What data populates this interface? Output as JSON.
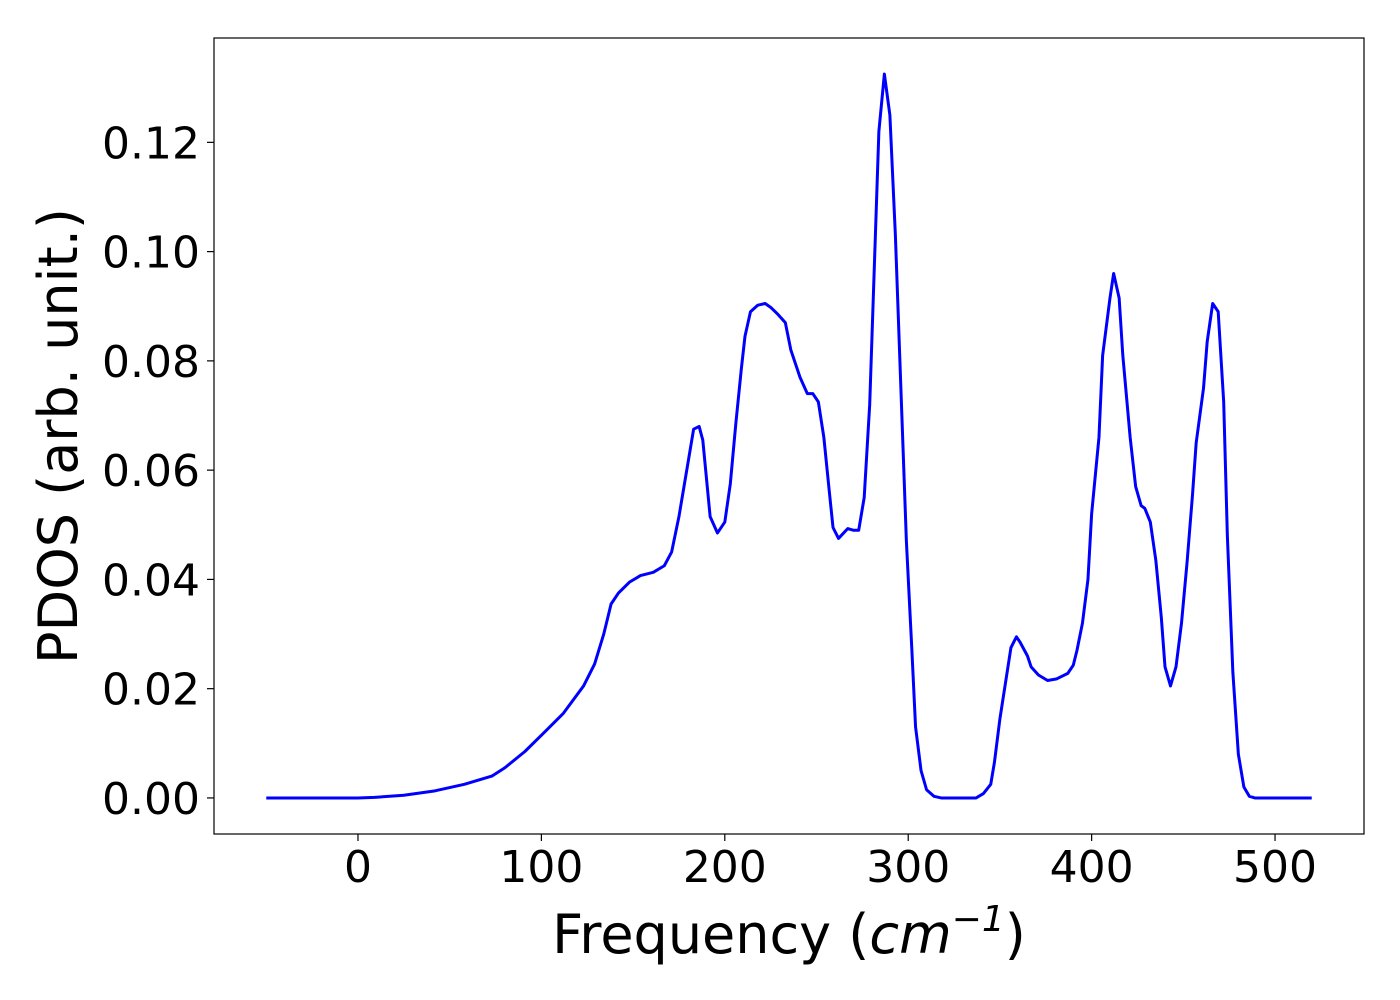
{
  "chart_data": {
    "type": "line",
    "xlabel_parts": [
      "Frequency (",
      "cm",
      "−1",
      ")"
    ],
    "ylabel": "PDOS (arb. unit.)",
    "x": [
      -50,
      0,
      9,
      25,
      42,
      58,
      73,
      80,
      91,
      101,
      112,
      123,
      129,
      134,
      138,
      142,
      148,
      154,
      161,
      167,
      171,
      175,
      180,
      183,
      186,
      188,
      192,
      196,
      200,
      203,
      206,
      209,
      211,
      214,
      218,
      222,
      225,
      229,
      233,
      236,
      241,
      245,
      248,
      251,
      254,
      257,
      259,
      262,
      267,
      270,
      273,
      276,
      279,
      284,
      287,
      290,
      293,
      296,
      299,
      302,
      304,
      307,
      310,
      314,
      318,
      337,
      341,
      345,
      347,
      350,
      353,
      356,
      359,
      361,
      365,
      367,
      371,
      376,
      381,
      387,
      390,
      392,
      395,
      398,
      400,
      404,
      406,
      410,
      412,
      415,
      417,
      421,
      424,
      427,
      429,
      432,
      435,
      438,
      440,
      443,
      446,
      449,
      452,
      455,
      457,
      461,
      463,
      466,
      469,
      472,
      474,
      477,
      480,
      483,
      486,
      489,
      520
    ],
    "series": [
      {
        "name": "PDOS",
        "color": "#0000ff",
        "values": [
          0,
          0,
          0.0001,
          0.0005,
          0.0013,
          0.0025,
          0.004,
          0.0055,
          0.0085,
          0.0118,
          0.0155,
          0.0205,
          0.0245,
          0.03,
          0.0355,
          0.0375,
          0.0395,
          0.0407,
          0.0413,
          0.0425,
          0.045,
          0.0515,
          0.0615,
          0.0675,
          0.068,
          0.0655,
          0.0515,
          0.0485,
          0.0505,
          0.0575,
          0.0685,
          0.0785,
          0.0845,
          0.089,
          0.0902,
          0.0905,
          0.0898,
          0.0885,
          0.087,
          0.082,
          0.077,
          0.074,
          0.074,
          0.0725,
          0.066,
          0.056,
          0.0495,
          0.0475,
          0.0493,
          0.049,
          0.049,
          0.055,
          0.072,
          0.122,
          0.1325,
          0.125,
          0.103,
          0.075,
          0.047,
          0.027,
          0.013,
          0.005,
          0.0015,
          0.0003,
          0,
          0,
          0.0008,
          0.0025,
          0.0065,
          0.0145,
          0.021,
          0.0275,
          0.0295,
          0.0285,
          0.026,
          0.024,
          0.0225,
          0.0215,
          0.0218,
          0.0228,
          0.0243,
          0.027,
          0.032,
          0.04,
          0.052,
          0.066,
          0.081,
          0.0915,
          0.096,
          0.0915,
          0.081,
          0.066,
          0.057,
          0.0535,
          0.053,
          0.0505,
          0.0435,
          0.033,
          0.024,
          0.0205,
          0.024,
          0.032,
          0.043,
          0.0555,
          0.065,
          0.075,
          0.0835,
          0.0905,
          0.089,
          0.0725,
          0.048,
          0.023,
          0.008,
          0.002,
          0.0003,
          0,
          0
        ]
      }
    ],
    "xlim": [
      -78.5,
      548.5
    ],
    "ylim": [
      -0.0066,
      0.1391
    ],
    "xticks": [
      0,
      100,
      200,
      300,
      400,
      500
    ],
    "yticks": [
      {
        "value": 0,
        "label": "0.00"
      },
      {
        "value": 0.02,
        "label": "0.02"
      },
      {
        "value": 0.04,
        "label": "0.04"
      },
      {
        "value": 0.06,
        "label": "0.06"
      },
      {
        "value": 0.08,
        "label": "0.08"
      },
      {
        "value": 0.1,
        "label": "0.10"
      },
      {
        "value": 0.12,
        "label": "0.12"
      }
    ],
    "grid": false
  }
}
